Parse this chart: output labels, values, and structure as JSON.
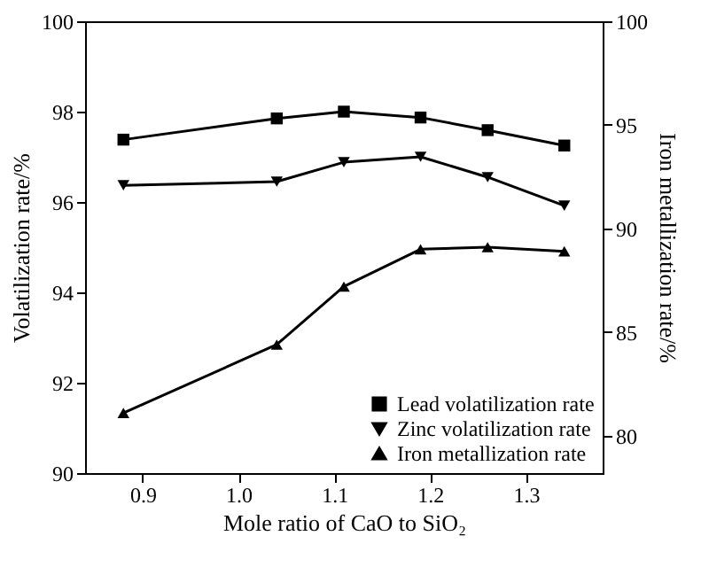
{
  "chart_data": {
    "type": "line",
    "xlabel": "Mole ratio of CaO to SiO₂",
    "ylabel": "Volatilization rate/%",
    "y2label": "Iron metallization rate/%",
    "x": [
      0.88,
      1.04,
      1.11,
      1.19,
      1.26,
      1.34
    ],
    "series": [
      {
        "name": "Lead volatilization rate",
        "color": "#000000",
        "marker": "square",
        "values": [
          97.38,
          97.85,
          98.0,
          97.87,
          97.59,
          97.25
        ]
      },
      {
        "name": "Zinc volatilization rate",
        "color": "#000000",
        "marker": "triangle-down",
        "values": [
          96.37,
          96.45,
          96.88,
          97.0,
          96.55,
          95.92
        ]
      },
      {
        "name": "Iron metallization rate",
        "color": "#000000",
        "marker": "triangle",
        "axis": "y2",
        "values": [
          81.1,
          84.4,
          87.2,
          89.0,
          89.1,
          88.9
        ]
      }
    ],
    "xlim": [
      0.84,
      1.38
    ],
    "xticks": [
      0.9,
      {
        "value": 1.0,
        "label": "1.0"
      },
      1.1,
      1.2,
      1.3
    ],
    "ylim": [
      90,
      100
    ],
    "yticks": [
      90,
      92,
      94,
      96,
      98,
      100
    ],
    "y2lim": [
      78.2,
      100
    ],
    "y2ticks": [
      80,
      85,
      90,
      95,
      100
    ],
    "legend": "bottom right",
    "grid": false,
    "line_style": "solid"
  }
}
